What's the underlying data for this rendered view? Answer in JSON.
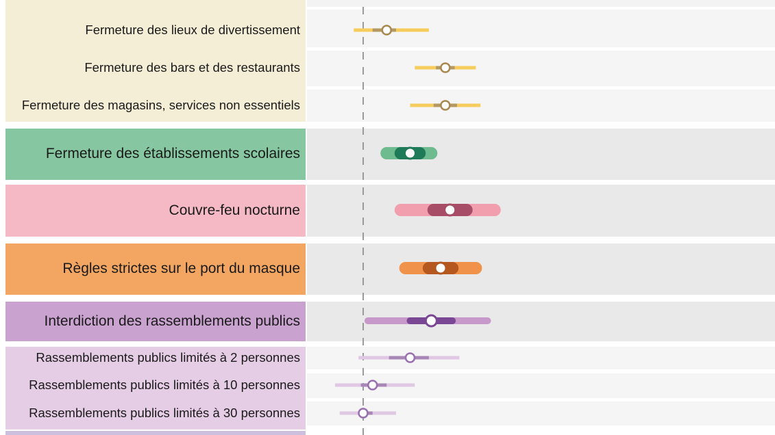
{
  "chart_data": {
    "type": "forest",
    "x_reference": 0,
    "xlim": [
      -2.5,
      22
    ],
    "groups": [
      {
        "name": "closure-group",
        "colors": {
          "panel": "#f5eed6",
          "light": "#f6cd5c",
          "dark": "#b49a62",
          "point": "#a8884e"
        },
        "rows": [
          {
            "label": "Fermeture des lieux de divertissement",
            "estimate": 5,
            "ci_inner": [
              2,
              7
            ],
            "ci_outer": [
              -2,
              14
            ]
          },
          {
            "label": "Fermeture des bars et des restaurants",
            "estimate": 17.5,
            "ci_inner": [
              15.5,
              19.5
            ],
            "ci_outer": [
              11,
              24
            ]
          },
          {
            "label": "Fermeture des magasins, services non essentiels",
            "estimate": 17.5,
            "ci_inner": [
              15,
              20
            ],
            "ci_outer": [
              10,
              25
            ]
          }
        ]
      },
      {
        "name": "school-group",
        "colors": {
          "panel": "#86c6a0",
          "light": "#6dbb8f",
          "dark": "#1f7a58",
          "point": "#1f7a58"
        },
        "rows": [
          {
            "label": "Fermeture des établissements scolaires",
            "estimate": 10,
            "ci_inner": [
              8,
              12
            ],
            "ci_outer": [
              5,
              14.5
            ]
          }
        ]
      },
      {
        "name": "curfew-group",
        "colors": {
          "panel": "#f4b9c4",
          "light": "#f19fae",
          "dark": "#a84d68",
          "point": "#a84d68"
        },
        "rows": [
          {
            "label": "Couvre-feu nocturne",
            "estimate": 18.5,
            "ci_inner": [
              15,
              22
            ],
            "ci_outer": [
              8,
              28
            ]
          }
        ]
      },
      {
        "name": "mask-group",
        "colors": {
          "panel": "#f3a662",
          "light": "#f0924a",
          "dark": "#b5581f",
          "point": "#b5581f"
        },
        "rows": [
          {
            "label": "Règles strictes sur le port du masque",
            "estimate": 16.5,
            "ci_inner": [
              14,
              19
            ],
            "ci_outer": [
              9,
              24
            ]
          }
        ]
      },
      {
        "name": "gathering-group",
        "colors": {
          "panel": "#c9a2cf",
          "light": "#c699ca",
          "dark": "#7a4795",
          "point": "#7a4795"
        },
        "rows": [
          {
            "label": "Interdiction des rassemblements publics",
            "estimate": 14.5,
            "ci_inner": [
              10,
              19
            ],
            "ci_outer": [
              1,
              26.5
            ]
          }
        ]
      },
      {
        "name": "limits-group",
        "colors": {
          "panel": "#e6cde6",
          "light": "#e0c7e3",
          "dark": "#a887b8",
          "point": "#9a6fae"
        },
        "rows": [
          {
            "label": "Rassemblements publics limités à 2 personnes",
            "estimate": 10,
            "ci_inner": [
              5.5,
              14
            ],
            "ci_outer": [
              -1,
              20.5
            ]
          },
          {
            "label": "Rassemblements publics limités à 10 personnes",
            "estimate": 2,
            "ci_inner": [
              -0.5,
              5
            ],
            "ci_outer": [
              -6,
              11
            ]
          },
          {
            "label": "Rassemblements publics limités à 30 personnes",
            "estimate": 0,
            "ci_inner": [
              -1,
              2
            ],
            "ci_outer": [
              -5,
              7
            ]
          }
        ]
      }
    ]
  }
}
